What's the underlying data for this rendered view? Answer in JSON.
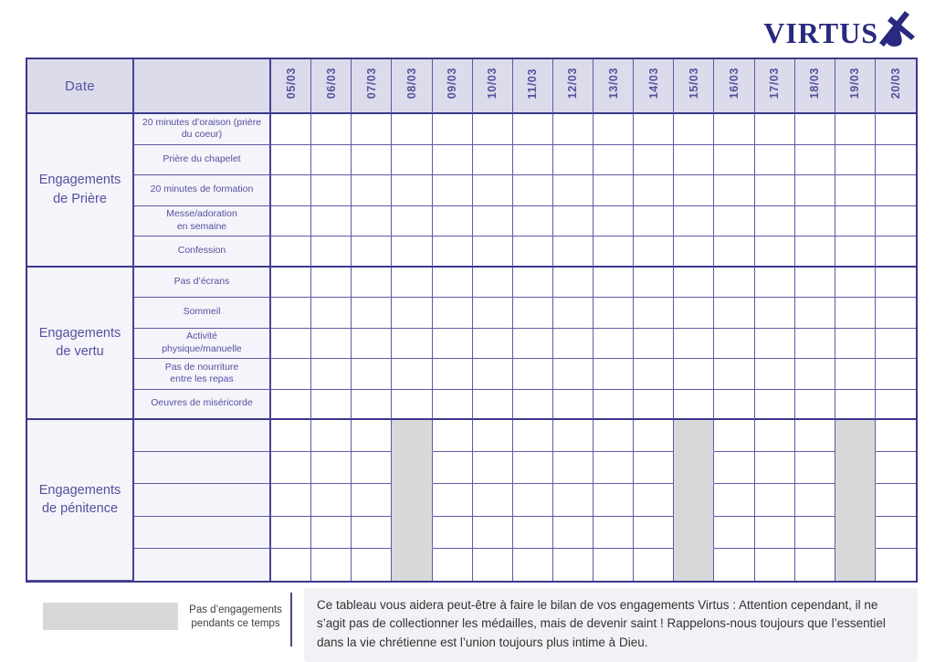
{
  "logo": {
    "text": "VIRTUS",
    "icon": "figure-carrying-cross-icon"
  },
  "colors": {
    "accent_purple": "#55519E",
    "grid_line": "#5D5AA5",
    "heavy_line": "#3B388B",
    "header_bg": "#DCDBEC",
    "label_bg": "#F4F4FA",
    "blocked_grey": "#D8D8D8",
    "note_bg": "#F2F2F6",
    "logo_navy": "#29297F"
  },
  "table": {
    "date_header_label": "Date",
    "dates": [
      "05/03",
      "06/03",
      "07/03",
      "08/03",
      "09/03",
      "10/03",
      "11/03",
      "12/03",
      "13/03",
      "14/03",
      "15/03",
      "16/03",
      "17/03",
      "18/03",
      "19/03",
      "20/03"
    ],
    "groups": [
      {
        "label": "Engagements\nde Prière",
        "rows": [
          "20 minutes d’oraison (prière\ndu coeur)",
          "Prière du chapelet",
          "20 minutes de formation",
          "Messe/adoration\nen semaine",
          "Confession"
        ],
        "blocked_dates": []
      },
      {
        "label": "Engagements\nde vertu",
        "rows": [
          "Pas d’écrans",
          "Sommeil",
          "Activité\nphysique/manuelle",
          "Pas de nourriture\nentre les repas",
          "Oeuvres de miséricorde"
        ],
        "blocked_dates": []
      },
      {
        "label": "Engagements\nde pénitence",
        "rows": [
          "",
          "",
          "",
          "",
          ""
        ],
        "blocked_dates": [
          "08/03",
          "15/03",
          "19/03"
        ]
      }
    ]
  },
  "legend": {
    "label": "Pas d’engagements\npendants ce temps"
  },
  "note": "Ce tableau vous aidera peut-être à faire le bilan de vos engagements Virtus : Attention cependant, il ne s’agit pas de collectionner les médailles, mais de devenir saint ! Rappelons-nous toujours que l’essentiel dans la vie chrétienne est l’union toujours plus intime à Dieu."
}
